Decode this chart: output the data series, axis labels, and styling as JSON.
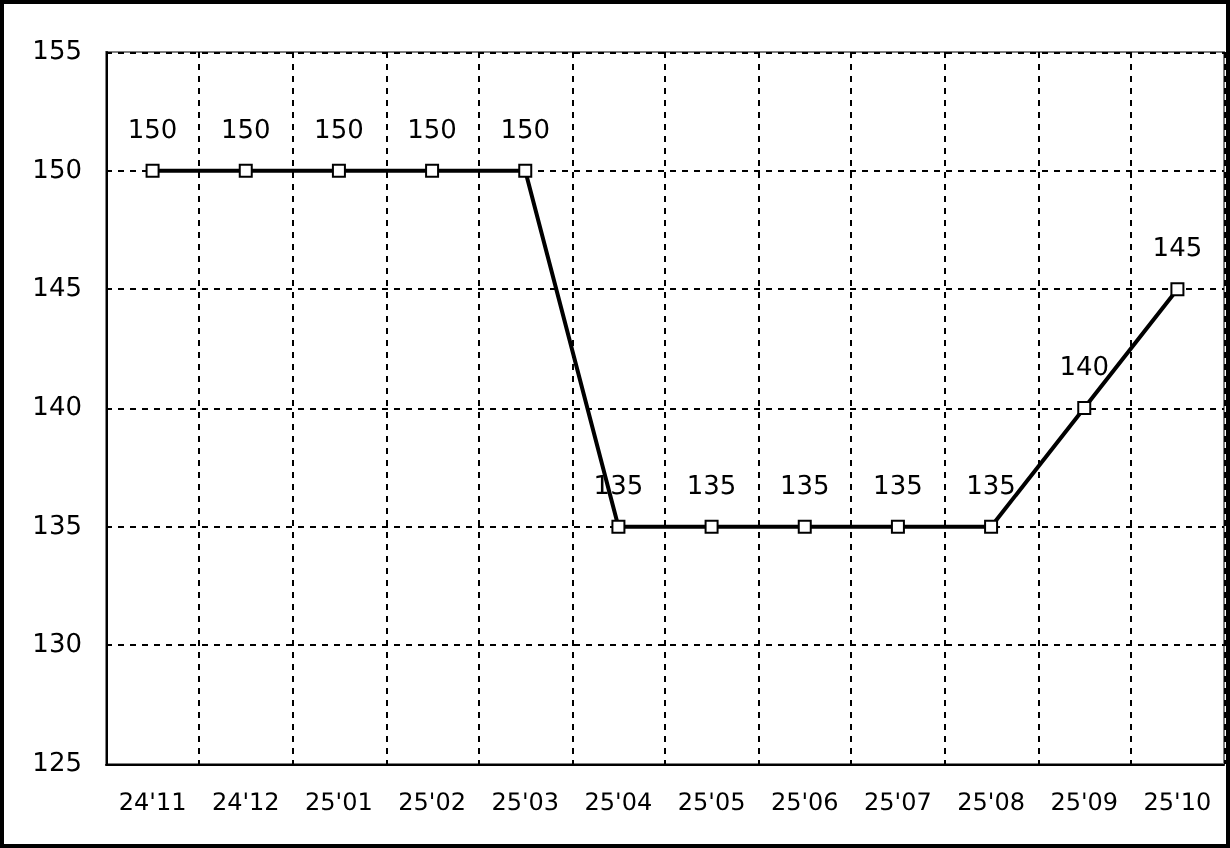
{
  "chart_data": {
    "type": "line",
    "categories": [
      "24'11",
      "24'12",
      "25'01",
      "25'02",
      "25'03",
      "25'04",
      "25'05",
      "25'06",
      "25'07",
      "25'08",
      "25'09",
      "25'10"
    ],
    "series": [
      {
        "color": "#000000",
        "values": [
          150,
          150,
          150,
          150,
          150,
          135,
          135,
          135,
          135,
          135,
          140,
          145
        ]
      }
    ],
    "ylim": [
      125,
      155
    ],
    "yticks": [
      125,
      130,
      135,
      140,
      145,
      150,
      155
    ],
    "grid": true,
    "marker": "square",
    "line_style": "solid",
    "data_labels": true
  }
}
